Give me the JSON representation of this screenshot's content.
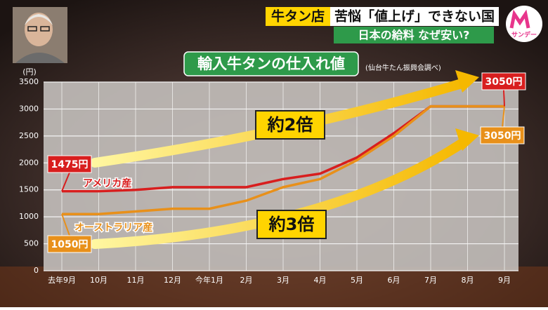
{
  "banner": {
    "tag": "牛タン店",
    "headline": "苦悩「値上げ」できない国",
    "subhead": "日本の給料 なぜ安い?",
    "logo_text": "サンデー"
  },
  "chart_data": {
    "type": "line",
    "title": "輸入牛タンの仕入れ値",
    "source": "(仙台牛たん振興会調べ)",
    "y_unit": "(円)",
    "categories": [
      "去年9月",
      "10月",
      "11月",
      "12月",
      "今年1月",
      "2月",
      "3月",
      "4月",
      "5月",
      "6月",
      "7月",
      "8月",
      "9月"
    ],
    "series": [
      {
        "name": "アメリカ産",
        "color": "#d81e1e",
        "values": [
          1475,
          1475,
          1500,
          1550,
          1550,
          1550,
          1700,
          1800,
          2100,
          2550,
          3050,
          3050,
          3050
        ],
        "value_labels": [
          "1475円",
          null,
          null,
          null,
          null,
          null,
          null,
          null,
          null,
          null,
          null,
          null,
          "3050円"
        ]
      },
      {
        "name": "オーストラリア産",
        "color": "#e8901a",
        "values": [
          1050,
          1050,
          1100,
          1150,
          1150,
          1300,
          1550,
          1700,
          2050,
          2500,
          3050,
          3050,
          3050
        ],
        "value_labels": [
          "1050円",
          null,
          null,
          null,
          null,
          null,
          null,
          null,
          null,
          null,
          null,
          null,
          "3050円"
        ]
      }
    ],
    "annotations": [
      "約2倍",
      "約3倍"
    ],
    "ylim": [
      0,
      3500
    ],
    "yticks": [
      0,
      500,
      1000,
      1500,
      2000,
      2500,
      3000,
      3500
    ],
    "grid": true
  }
}
